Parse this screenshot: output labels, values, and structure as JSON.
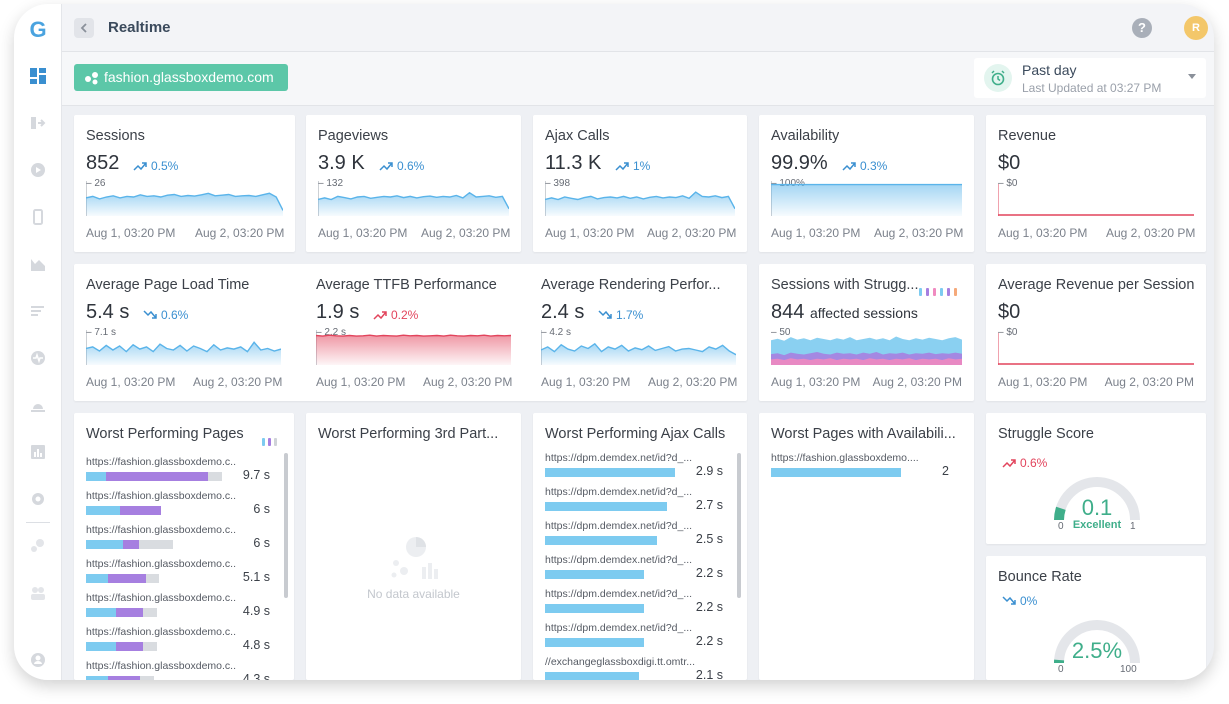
{
  "app": {
    "logo": "G",
    "page_title": "Realtime",
    "avatar_initial": "R",
    "help": "?"
  },
  "site": {
    "name": "fashion.glassboxdemo.com"
  },
  "time_range": {
    "label": "Past day",
    "updated": "Last Updated at 03:27 PM"
  },
  "colors": {
    "accent_green": "#5cc7a8",
    "blue": "#3a8fd0",
    "red": "#e2445c",
    "purple": "#a67fe0",
    "light_blue": "#7dcbf0"
  },
  "metrics": [
    {
      "title": "Sessions",
      "value": "852",
      "delta": "0.5%",
      "trend": "up",
      "color": "blue",
      "max": "26",
      "x_start": "Aug 1, 03:20 PM",
      "x_end": "Aug 2, 03:20 PM",
      "series": [
        0.55,
        0.6,
        0.52,
        0.58,
        0.62,
        0.55,
        0.6,
        0.58,
        0.65,
        0.6,
        0.62,
        0.58,
        0.64,
        0.66,
        0.6,
        0.63,
        0.61,
        0.65,
        0.7,
        0.62,
        0.64,
        0.66,
        0.6,
        0.62,
        0.63,
        0.6,
        0.65,
        0.7,
        0.58,
        0.15
      ]
    },
    {
      "title": "Pageviews",
      "value": "3.9 K",
      "delta": "0.6%",
      "trend": "up",
      "color": "blue",
      "max": "132",
      "x_start": "Aug 1, 03:20 PM",
      "x_end": "Aug 2, 03:20 PM",
      "series": [
        0.5,
        0.55,
        0.5,
        0.6,
        0.56,
        0.52,
        0.58,
        0.6,
        0.54,
        0.57,
        0.6,
        0.58,
        0.62,
        0.56,
        0.6,
        0.55,
        0.59,
        0.61,
        0.57,
        0.6,
        0.58,
        0.63,
        0.55,
        0.72,
        0.58,
        0.6,
        0.62,
        0.57,
        0.6,
        0.2
      ]
    },
    {
      "title": "Ajax Calls",
      "value": "11.3 K",
      "delta": "1%",
      "trend": "up",
      "color": "blue",
      "max": "398",
      "x_start": "Aug 1, 03:20 PM",
      "x_end": "Aug 2, 03:20 PM",
      "series": [
        0.5,
        0.55,
        0.5,
        0.58,
        0.54,
        0.5,
        0.56,
        0.6,
        0.52,
        0.56,
        0.58,
        0.55,
        0.6,
        0.54,
        0.58,
        0.52,
        0.57,
        0.6,
        0.55,
        0.58,
        0.56,
        0.62,
        0.54,
        0.74,
        0.6,
        0.58,
        0.62,
        0.56,
        0.6,
        0.2
      ]
    },
    {
      "title": "Availability",
      "value": "99.9%",
      "delta": "0.3%",
      "trend": "up",
      "color": "blue",
      "max": "100%",
      "x_start": "Aug 1, 03:20 PM",
      "x_end": "Aug 2, 03:20 PM",
      "series": [
        0.98,
        0.98,
        0.98,
        0.98,
        0.98,
        0.98,
        0.98,
        0.98,
        0.98,
        0.98,
        0.98,
        0.98,
        0.98,
        0.98,
        0.98,
        0.98,
        0.98,
        0.98,
        0.98,
        0.98,
        0.98,
        0.98,
        0.98,
        0.98,
        0.98,
        0.98,
        0.98,
        0.98,
        0.98,
        0.98
      ]
    },
    {
      "title": "Revenue",
      "value": "$0",
      "delta": "",
      "trend": "none",
      "color": "red",
      "max": "$0",
      "x_start": "Aug 1, 03:20 PM",
      "x_end": "Aug 2, 03:20 PM",
      "series": [
        0,
        0,
        0,
        0,
        0,
        0,
        0,
        0,
        0,
        0,
        0,
        0,
        0,
        0,
        0,
        0,
        0,
        0,
        0,
        0,
        0,
        0,
        0,
        0,
        0,
        0,
        0,
        0,
        0,
        0
      ]
    }
  ],
  "performance": [
    {
      "title": "Average Page Load Time",
      "value": "5.4 s",
      "delta": "0.6%",
      "trend": "down",
      "color": "blue",
      "max": "7.1 s",
      "x_start": "Aug 1, 03:20 PM",
      "x_end": "Aug 2, 03:20 PM",
      "series": [
        0.5,
        0.55,
        0.42,
        0.6,
        0.45,
        0.58,
        0.4,
        0.62,
        0.48,
        0.55,
        0.4,
        0.64,
        0.5,
        0.45,
        0.6,
        0.42,
        0.58,
        0.5,
        0.4,
        0.62,
        0.45,
        0.52,
        0.48,
        0.55,
        0.4,
        0.7,
        0.45,
        0.5,
        0.42,
        0.48
      ]
    },
    {
      "title": "Average TTFB Performance",
      "value": "1.9 s",
      "delta": "0.2%",
      "trend": "up",
      "color": "red",
      "max": "2.2 s",
      "x_start": "Aug 1, 03:20 PM",
      "x_end": "Aug 2, 03:20 PM",
      "series": [
        0.92,
        0.9,
        0.93,
        0.91,
        0.9,
        0.92,
        0.9,
        0.91,
        0.93,
        0.9,
        0.92,
        0.91,
        0.9,
        0.93,
        0.91,
        0.92,
        0.9,
        0.91,
        0.92,
        0.9,
        0.93,
        0.91,
        0.9,
        0.92,
        0.91,
        0.93,
        0.9,
        0.92,
        0.91,
        0.92
      ]
    },
    {
      "title": "Average Rendering Perfor...",
      "value": "2.4 s",
      "delta": "1.7%",
      "trend": "down",
      "color": "blue",
      "max": "4.2 s",
      "x_start": "Aug 1, 03:20 PM",
      "x_end": "Aug 2, 03:20 PM",
      "series": [
        0.45,
        0.55,
        0.4,
        0.62,
        0.48,
        0.42,
        0.58,
        0.5,
        0.65,
        0.4,
        0.55,
        0.48,
        0.6,
        0.42,
        0.52,
        0.46,
        0.58,
        0.44,
        0.5,
        0.56,
        0.42,
        0.48,
        0.5,
        0.45,
        0.4,
        0.55,
        0.48,
        0.6,
        0.42,
        0.3
      ]
    }
  ],
  "struggle_sessions": {
    "title": "Sessions with Strugg...",
    "value": "844",
    "value_suffix": "affected sessions",
    "max": "50",
    "x_start": "Aug 1, 03:20 PM",
    "x_end": "Aug 2, 03:20 PM",
    "legend_colors": [
      "#7dcbf0",
      "#a67fe0",
      "#f08ac0",
      "#7dcbf0",
      "#a67fe0",
      "#f5a97a"
    ],
    "layers": [
      {
        "color": "#7dcbf0",
        "values": [
          0.8,
          0.85,
          0.78,
          0.9,
          0.82,
          0.86,
          0.8,
          0.88,
          0.84,
          0.8,
          0.86,
          0.82,
          0.9,
          0.8,
          0.84,
          0.88,
          0.82,
          0.86,
          0.8,
          0.92,
          0.84,
          0.8,
          0.86,
          0.82,
          0.88,
          0.84,
          0.8,
          0.86,
          0.9,
          0.82
        ]
      },
      {
        "color": "#a67fe0",
        "values": [
          0.35,
          0.38,
          0.32,
          0.4,
          0.36,
          0.34,
          0.38,
          0.42,
          0.36,
          0.34,
          0.4,
          0.36,
          0.38,
          0.34,
          0.4,
          0.36,
          0.42,
          0.34,
          0.38,
          0.36,
          0.4,
          0.34,
          0.38,
          0.36,
          0.4,
          0.35,
          0.38,
          0.36,
          0.4,
          0.36
        ]
      },
      {
        "color": "#f08ac0",
        "values": [
          0.18,
          0.2,
          0.16,
          0.22,
          0.18,
          0.2,
          0.16,
          0.2,
          0.18,
          0.22,
          0.16,
          0.2,
          0.18,
          0.2,
          0.16,
          0.22,
          0.18,
          0.2,
          0.16,
          0.2,
          0.18,
          0.22,
          0.16,
          0.2,
          0.18,
          0.2,
          0.16,
          0.22,
          0.18,
          0.2
        ]
      }
    ]
  },
  "avg_revenue": {
    "title": "Average Revenue per Session",
    "value": "$0",
    "max": "$0",
    "x_start": "Aug 1, 03:20 PM",
    "x_end": "Aug 2, 03:20 PM"
  },
  "worst_pages": {
    "title": "Worst Performing Pages",
    "legend_colors": [
      "#7dcbf0",
      "#a67fe0",
      "#d0d3d8"
    ],
    "rows": [
      {
        "url": "https://fashion.glassboxdemo.c...",
        "value": "9.7 s",
        "a": 0.15,
        "b": 0.75,
        "c": 0.1
      },
      {
        "url": "https://fashion.glassboxdemo.c...",
        "value": "6 s",
        "a": 0.25,
        "b": 0.3,
        "c": 0.0
      },
      {
        "url": "https://fashion.glassboxdemo.c...",
        "value": "6 s",
        "a": 0.27,
        "b": 0.12,
        "c": 0.25
      },
      {
        "url": "https://fashion.glassboxdemo.c...",
        "value": "5.1 s",
        "a": 0.16,
        "b": 0.28,
        "c": 0.1
      },
      {
        "url": "https://fashion.glassboxdemo.c...",
        "value": "4.9 s",
        "a": 0.22,
        "b": 0.2,
        "c": 0.1
      },
      {
        "url": "https://fashion.glassboxdemo.c...",
        "value": "4.8 s",
        "a": 0.22,
        "b": 0.2,
        "c": 0.1
      },
      {
        "url": "https://fashion.glassboxdemo.c...",
        "value": "4.3 s",
        "a": 0.16,
        "b": 0.24,
        "c": 0.1
      }
    ]
  },
  "worst_3rd": {
    "title": "Worst Performing 3rd Part...",
    "empty": "No data available"
  },
  "worst_ajax": {
    "title": "Worst Performing Ajax Calls",
    "rows": [
      {
        "url": "https://dpm.demdex.net/id?d_...",
        "value": "2.9 s",
        "w": 1.0
      },
      {
        "url": "https://dpm.demdex.net/id?d_...",
        "value": "2.7 s",
        "w": 0.94
      },
      {
        "url": "https://dpm.demdex.net/id?d_...",
        "value": "2.5 s",
        "w": 0.86
      },
      {
        "url": "https://dpm.demdex.net/id?d_...",
        "value": "2.2 s",
        "w": 0.76
      },
      {
        "url": "https://dpm.demdex.net/id?d_...",
        "value": "2.2 s",
        "w": 0.76
      },
      {
        "url": "https://dpm.demdex.net/id?d_...",
        "value": "2.2 s",
        "w": 0.76
      },
      {
        "url": "//exchangeglassboxdigi.tt.omtr...",
        "value": "2.1 s",
        "w": 0.72
      }
    ]
  },
  "worst_avail": {
    "title": "Worst Pages with Availabili...",
    "rows": [
      {
        "url": "https://fashion.glassboxdemo....",
        "value": "2",
        "w": 1.0
      }
    ]
  },
  "struggle_score": {
    "title": "Struggle Score",
    "delta": "0.6%",
    "trend": "up",
    "value": "0.1",
    "label": "Excellent",
    "min": "0",
    "max": "1",
    "fraction": 0.1
  },
  "bounce_rate": {
    "title": "Bounce Rate",
    "delta": "0%",
    "trend": "down",
    "value": "2.5%",
    "min": "0",
    "max": "100",
    "fraction": 0.025
  }
}
